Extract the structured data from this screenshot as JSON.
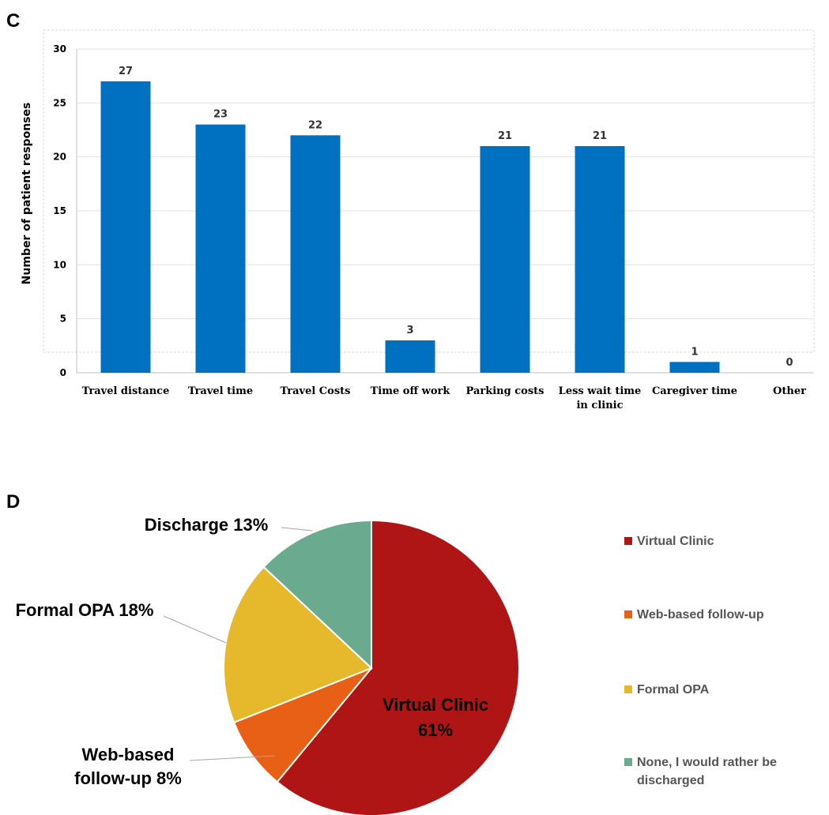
{
  "chart_data": [
    {
      "panel": "C",
      "type": "bar",
      "ylabel": "Number of  patient responses",
      "ylim": [
        0,
        30
      ],
      "yticks": [
        0,
        5,
        10,
        15,
        20,
        25,
        30
      ],
      "grid": true,
      "bar_color": "#0070c0",
      "categories": [
        [
          "Travel distance"
        ],
        [
          "Travel time"
        ],
        [
          "Travel Costs"
        ],
        [
          "Time off  work"
        ],
        [
          "Parking costs"
        ],
        [
          "Less wait time",
          "in clinic"
        ],
        [
          "Caregiver time"
        ],
        [
          "Other"
        ]
      ],
      "values": [
        27,
        23,
        22,
        3,
        21,
        21,
        1,
        0
      ]
    },
    {
      "panel": "D",
      "type": "pie",
      "slices": [
        {
          "name": "Virtual Clinic",
          "value": 61,
          "color": "#b01515",
          "label": [
            "Virtual Clinic",
            "61%"
          ]
        },
        {
          "name": "Web-based follow-up",
          "value": 8,
          "color": "#e86015",
          "label": [
            "Web-based",
            "follow-up 8%"
          ]
        },
        {
          "name": "Formal OPA",
          "value": 18,
          "color": "#e6b82c",
          "label": [
            "Formal OPA 18%"
          ]
        },
        {
          "name": "None, I would rather be discharged",
          "value": 13,
          "color": "#6aab90",
          "label": [
            "Discharge 13%"
          ]
        }
      ],
      "legend": {
        "placement": "right",
        "entries": [
          [
            "Virtual Clinic"
          ],
          [
            "Web-based follow-up"
          ],
          [
            "Formal OPA"
          ],
          [
            "None, I would rather be",
            "discharged"
          ]
        ]
      }
    }
  ]
}
